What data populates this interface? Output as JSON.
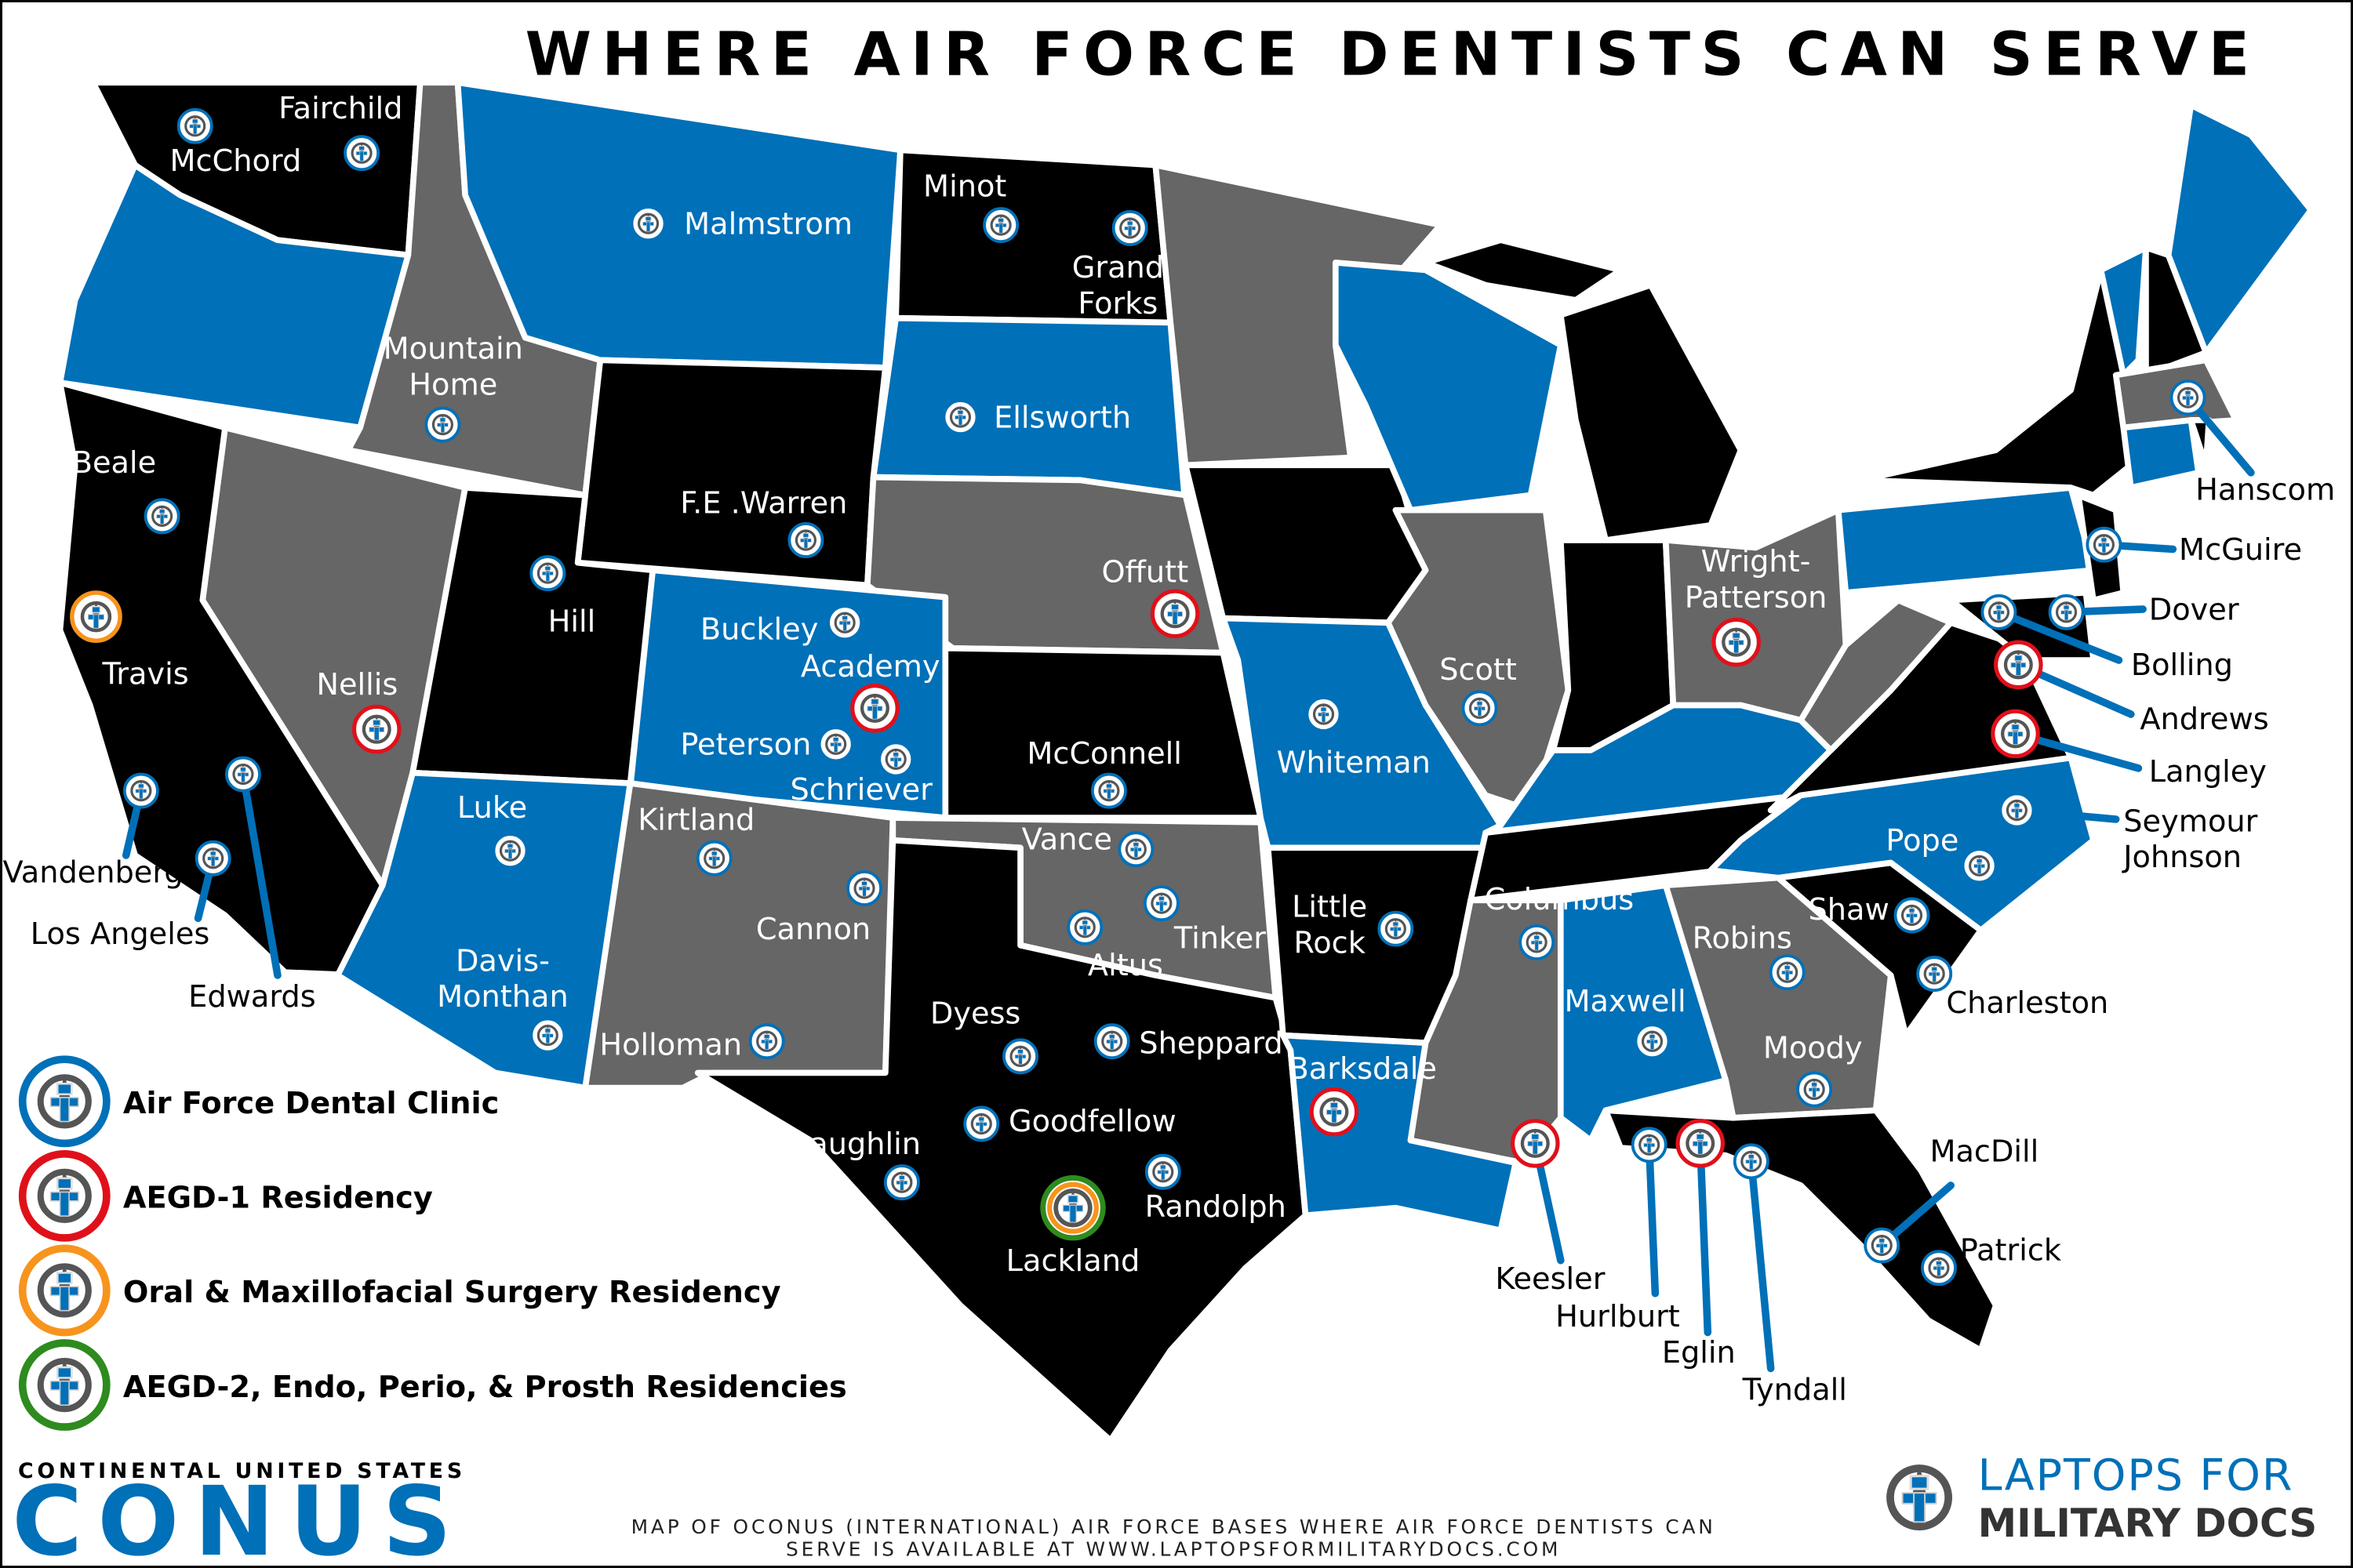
{
  "title": "WHERE AIR FORCE DENTISTS CAN SERVE",
  "colors": {
    "blue": "#0070b8",
    "black": "#000000",
    "gray": "#666666",
    "clinic": "#0070b8",
    "aegd1": "#e0101a",
    "omfs": "#f7941d",
    "aegd2": "#2e8b1e"
  },
  "legend": [
    {
      "type": "clinic",
      "label": "Air Force Dental Clinic"
    },
    {
      "type": "aegd1",
      "label": "AEGD-1 Residency"
    },
    {
      "type": "omfs",
      "label": "Oral & Maxillofacial Surgery Residency"
    },
    {
      "type": "aegd2",
      "label": "AEGD-2, Endo, Perio, & Prosth Residencies"
    }
  ],
  "region": {
    "subtitle": "CONTINENTAL UNITED STATES",
    "name": "CONUS"
  },
  "footnote": {
    "line1": "MAP OF OCONUS (INTERNATIONAL) AIR FORCE BASES WHERE AIR FORCE DENTISTS CAN",
    "line2": "SERVE IS AVAILABLE AT WWW.LAPTOPSFORMILITARYDOCS.COM"
  },
  "logo": {
    "line1": "LAPTOPS FOR",
    "line2": "MILITARY DOCS",
    "icon": "medical-cross-compass-laptop-icon"
  },
  "bases": [
    {
      "name": "McChord",
      "type": "clinic"
    },
    {
      "name": "Fairchild",
      "type": "clinic"
    },
    {
      "name": "Malmstrom",
      "type": "clinic"
    },
    {
      "name": "Minot",
      "type": "clinic"
    },
    {
      "name": "Grand Forks",
      "type": "clinic",
      "lines": [
        "Grand",
        "Forks"
      ]
    },
    {
      "name": "Mountain Home",
      "type": "clinic",
      "lines": [
        "Mountain",
        "Home"
      ]
    },
    {
      "name": "Ellsworth",
      "type": "clinic"
    },
    {
      "name": "Beale",
      "type": "clinic"
    },
    {
      "name": "F.E .Warren",
      "type": "clinic"
    },
    {
      "name": "Hill",
      "type": "clinic"
    },
    {
      "name": "Travis",
      "type": "omfs"
    },
    {
      "name": "Offutt",
      "type": "aegd1"
    },
    {
      "name": "Buckley",
      "type": "clinic"
    },
    {
      "name": "Academy",
      "type": "aegd1"
    },
    {
      "name": "Peterson",
      "type": "clinic"
    },
    {
      "name": "Schriever",
      "type": "clinic"
    },
    {
      "name": "Nellis",
      "type": "aegd1"
    },
    {
      "name": "McConnell",
      "type": "clinic"
    },
    {
      "name": "Whiteman",
      "type": "clinic"
    },
    {
      "name": "Scott",
      "type": "clinic"
    },
    {
      "name": "Wright-Patterson",
      "type": "aegd1",
      "lines": [
        "Wright-",
        "Patterson"
      ]
    },
    {
      "name": "Vandenberg",
      "type": "clinic"
    },
    {
      "name": "Edwards",
      "type": "clinic"
    },
    {
      "name": "Los Angeles",
      "type": "clinic"
    },
    {
      "name": "Luke",
      "type": "clinic"
    },
    {
      "name": "Davis-Monthan",
      "type": "clinic",
      "lines": [
        "Davis-",
        "Monthan"
      ]
    },
    {
      "name": "Kirtland",
      "type": "clinic"
    },
    {
      "name": "Cannon",
      "type": "clinic"
    },
    {
      "name": "Holloman",
      "type": "clinic"
    },
    {
      "name": "Vance",
      "type": "clinic"
    },
    {
      "name": "Tinker",
      "type": "clinic"
    },
    {
      "name": "Altus",
      "type": "clinic"
    },
    {
      "name": "Little Rock",
      "type": "clinic",
      "lines": [
        "Little",
        "Rock"
      ]
    },
    {
      "name": "Columbus",
      "type": "clinic"
    },
    {
      "name": "Dyess",
      "type": "clinic"
    },
    {
      "name": "Sheppard",
      "type": "clinic"
    },
    {
      "name": "Goodfellow",
      "type": "clinic"
    },
    {
      "name": "Randolph",
      "type": "clinic"
    },
    {
      "name": "Laughlin",
      "type": "clinic"
    },
    {
      "name": "Lackland",
      "type": "aegd2_omfs"
    },
    {
      "name": "Barksdale",
      "type": "aegd1"
    },
    {
      "name": "Keesler",
      "type": "aegd1"
    },
    {
      "name": "Hurlburt",
      "type": "clinic"
    },
    {
      "name": "Eglin",
      "type": "aegd1"
    },
    {
      "name": "Tyndall",
      "type": "clinic"
    },
    {
      "name": "Maxwell",
      "type": "clinic"
    },
    {
      "name": "Robins",
      "type": "clinic"
    },
    {
      "name": "Moody",
      "type": "clinic"
    },
    {
      "name": "Shaw",
      "type": "clinic"
    },
    {
      "name": "Charleston",
      "type": "clinic"
    },
    {
      "name": "Pope",
      "type": "clinic"
    },
    {
      "name": "Seymour Johnson",
      "type": "clinic",
      "lines": [
        "Seymour",
        "Johnson"
      ]
    },
    {
      "name": "Langley",
      "type": "aegd1"
    },
    {
      "name": "Andrews",
      "type": "aegd1"
    },
    {
      "name": "Bolling",
      "type": "clinic"
    },
    {
      "name": "Dover",
      "type": "clinic"
    },
    {
      "name": "McGuire",
      "type": "clinic"
    },
    {
      "name": "Hanscom",
      "type": "clinic"
    },
    {
      "name": "MacDill",
      "type": "clinic"
    },
    {
      "name": "Patrick",
      "type": "clinic"
    }
  ]
}
